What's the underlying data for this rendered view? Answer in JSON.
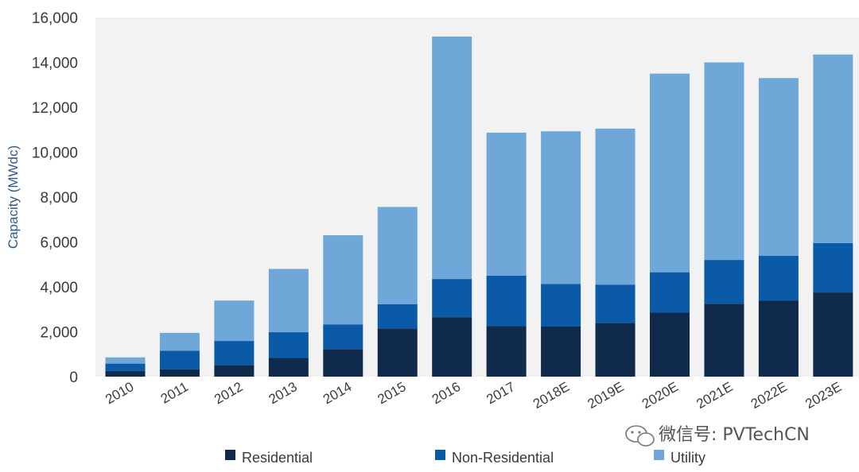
{
  "chart_data": {
    "type": "bar",
    "stacked": true,
    "categories": [
      "2010",
      "2011",
      "2012",
      "2013",
      "2014",
      "2015",
      "2016",
      "2017",
      "2018E",
      "2019E",
      "2020E",
      "2021E",
      "2022E",
      "2023E"
    ],
    "series": [
      {
        "name": "Residential",
        "color": "#0f2a4a",
        "values": [
          250,
          320,
          520,
          830,
          1230,
          2150,
          2650,
          2250,
          2230,
          2400,
          2850,
          3250,
          3380,
          3750
        ]
      },
      {
        "name": "Non-Residential",
        "color": "#0a5aa8",
        "values": [
          330,
          830,
          1070,
          1150,
          1100,
          1080,
          1700,
          2250,
          1900,
          1700,
          1800,
          1950,
          2000,
          2200
        ]
      },
      {
        "name": "Utility",
        "color": "#6fa8d8",
        "values": [
          280,
          800,
          1800,
          2820,
          3970,
          4330,
          10800,
          6370,
          6800,
          6950,
          8850,
          8800,
          7920,
          8400
        ]
      }
    ],
    "ylabel": "Capacity (MWdc)",
    "ylim": [
      0,
      16000
    ],
    "yticks": [
      "0",
      "2,000",
      "4,000",
      "6,000",
      "8,000",
      "10,000",
      "12,000",
      "14,000",
      "16,000"
    ],
    "grid": false,
    "plot_background": "#f2f2f2",
    "legend": "bottom"
  },
  "watermark": {
    "text": "微信号: PVTechCN",
    "icon": "wechat-icon"
  }
}
